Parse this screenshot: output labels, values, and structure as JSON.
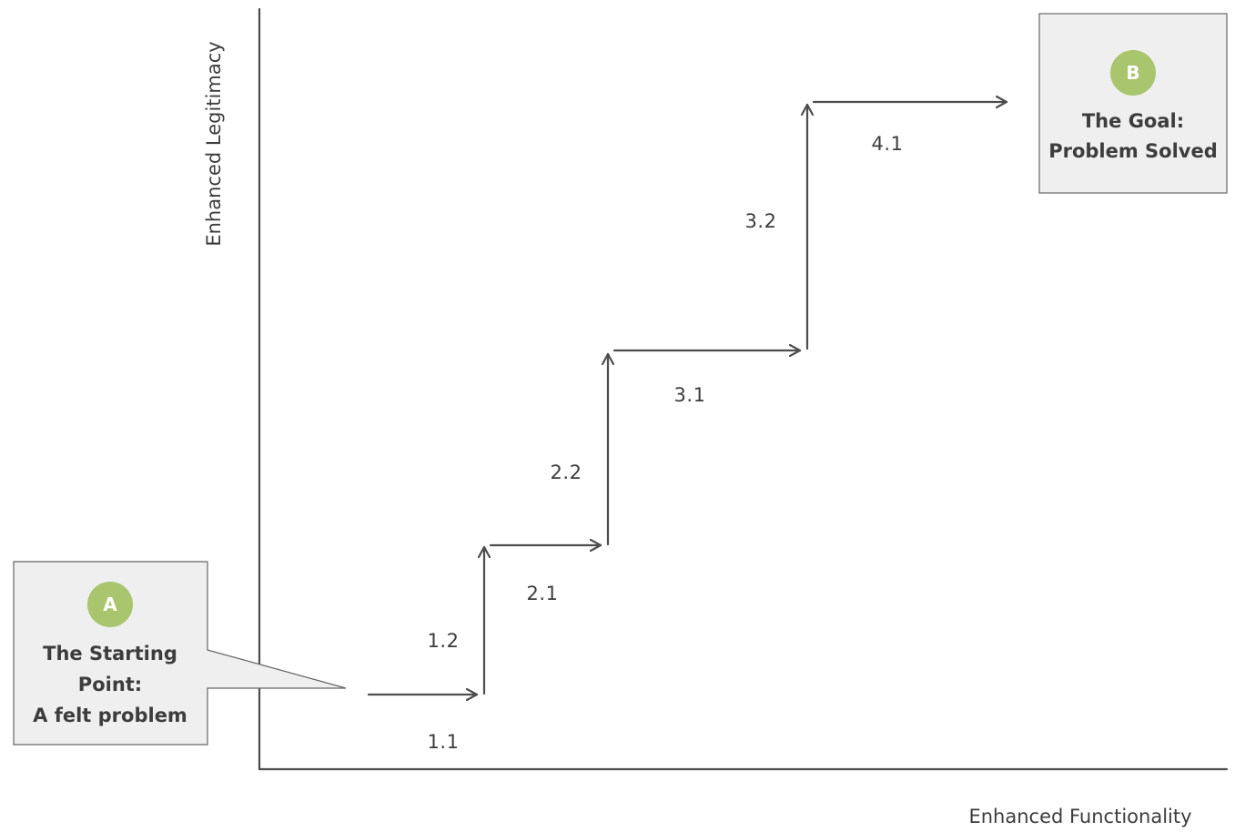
{
  "axes": {
    "x_label": "Enhanced Functionality",
    "y_label": "Enhanced Legitimacy"
  },
  "start": {
    "badge": "A",
    "lines": [
      "The Starting",
      "Point:",
      "A felt problem"
    ]
  },
  "goal": {
    "badge": "B",
    "lines": [
      "The Goal:",
      "Problem Solved"
    ]
  },
  "steps": [
    "1.1",
    "1.2",
    "2.1",
    "2.2",
    "3.1",
    "3.2",
    "4.1"
  ],
  "colors": {
    "badge": "#a9c56d",
    "box_fill": "#efefef",
    "line": "#4d4d4d",
    "text": "#3d3d3d"
  }
}
